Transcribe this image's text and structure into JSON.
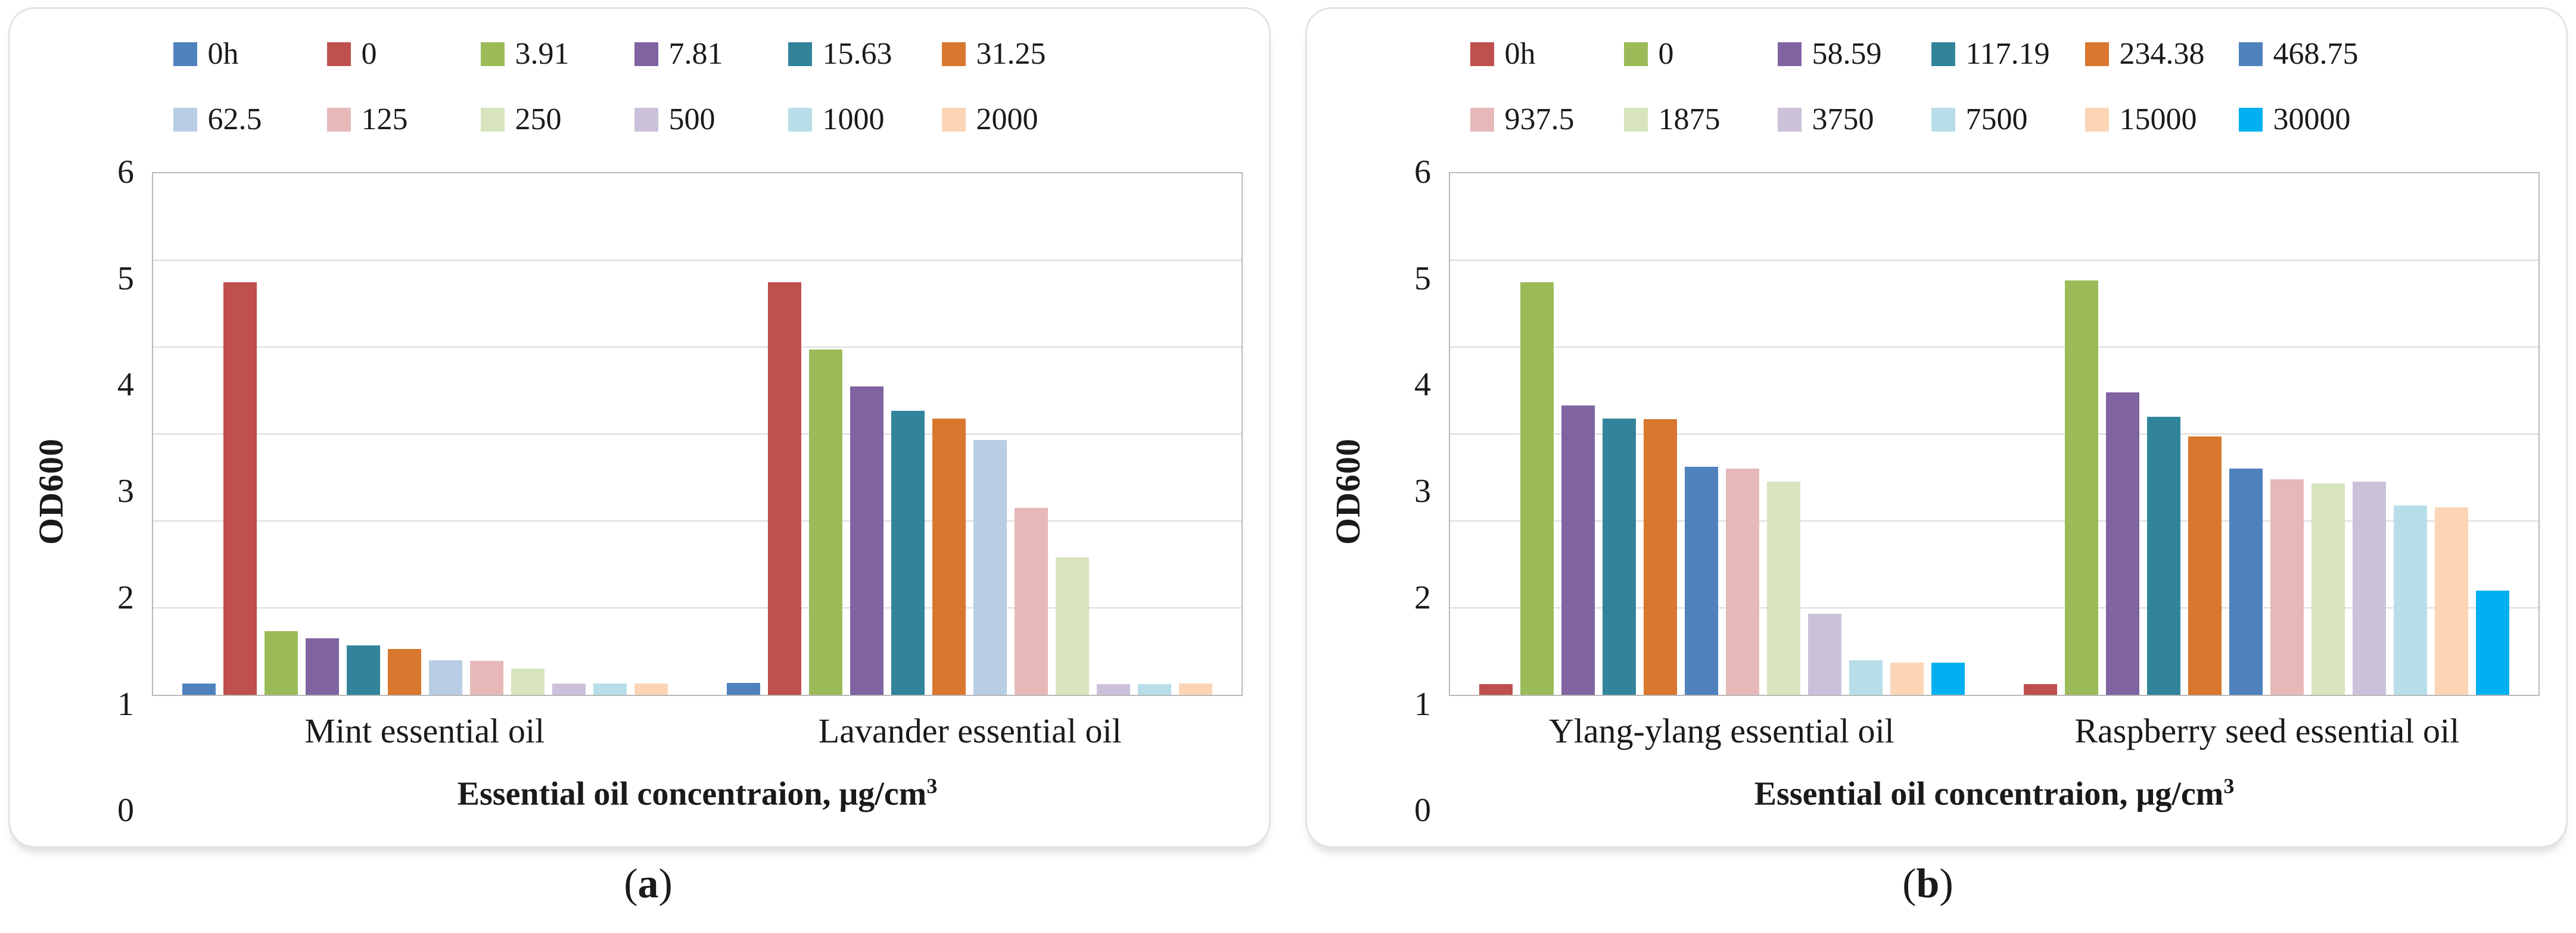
{
  "captions": [
    {
      "open": "(",
      "label": "a",
      "close": ")"
    },
    {
      "open": "(",
      "label": "b",
      "close": ")"
    }
  ],
  "chart_data": [
    {
      "type": "bar",
      "title": "",
      "ylabel": "OD600",
      "xlabel": "Essential oil concentraion, μg/cm",
      "xlabel_superscript": "3",
      "ylim": [
        0,
        6
      ],
      "yticks": [
        0,
        1,
        2,
        3,
        4,
        5,
        6
      ],
      "grid": true,
      "legend_position": "top",
      "categories": [
        "Mint essential oil",
        "Lavander essential oil"
      ],
      "series": [
        {
          "name": "0h",
          "color": "#4f81bd",
          "values": [
            0.13,
            0.14
          ]
        },
        {
          "name": "0",
          "color": "#c0504d",
          "values": [
            4.75,
            4.75
          ]
        },
        {
          "name": "3.91",
          "color": "#9bbb59",
          "values": [
            0.73,
            3.97
          ]
        },
        {
          "name": "7.81",
          "color": "#8064a2",
          "values": [
            0.65,
            3.55
          ]
        },
        {
          "name": "15.63",
          "color": "#31849b",
          "values": [
            0.57,
            3.27
          ]
        },
        {
          "name": "31.25",
          "color": "#d9772e",
          "values": [
            0.53,
            3.18
          ]
        },
        {
          "name": "62.5",
          "color": "#b9cde5",
          "values": [
            0.4,
            2.93
          ]
        },
        {
          "name": "125",
          "color": "#e6b9b8",
          "values": [
            0.39,
            2.15
          ]
        },
        {
          "name": "250",
          "color": "#d7e4bd",
          "values": [
            0.3,
            1.58
          ]
        },
        {
          "name": "500",
          "color": "#ccc1da",
          "values": [
            0.13,
            0.12
          ]
        },
        {
          "name": "1000",
          "color": "#b7dee8",
          "values": [
            0.13,
            0.12
          ]
        },
        {
          "name": "2000",
          "color": "#fbd5b5",
          "values": [
            0.13,
            0.13
          ]
        }
      ]
    },
    {
      "type": "bar",
      "title": "",
      "ylabel": "OD600",
      "xlabel": "Essential oil concentraion, μg/cm",
      "xlabel_superscript": "3",
      "ylim": [
        0,
        6
      ],
      "yticks": [
        0,
        1,
        2,
        3,
        4,
        5,
        6
      ],
      "grid": true,
      "legend_position": "top",
      "categories": [
        "Ylang-ylang essential oil",
        "Raspberry seed essential oil"
      ],
      "series": [
        {
          "name": "0h",
          "color": "#c0504d",
          "values": [
            0.12,
            0.12
          ]
        },
        {
          "name": "0",
          "color": "#9bbb59",
          "values": [
            4.75,
            4.77
          ]
        },
        {
          "name": "58.59",
          "color": "#8064a2",
          "values": [
            3.33,
            3.48
          ]
        },
        {
          "name": "117.19",
          "color": "#31849b",
          "values": [
            3.18,
            3.2
          ]
        },
        {
          "name": "234.38",
          "color": "#d9772e",
          "values": [
            3.17,
            2.97
          ]
        },
        {
          "name": "468.75",
          "color": "#4f81bd",
          "values": [
            2.62,
            2.6
          ]
        },
        {
          "name": "937.5",
          "color": "#e6b9b8",
          "values": [
            2.6,
            2.48
          ]
        },
        {
          "name": "1875",
          "color": "#d7e4bd",
          "values": [
            2.45,
            2.43
          ]
        },
        {
          "name": "3750",
          "color": "#ccc1da",
          "values": [
            0.93,
            2.45
          ]
        },
        {
          "name": "7500",
          "color": "#b7dee8",
          "values": [
            0.4,
            2.18
          ]
        },
        {
          "name": "15000",
          "color": "#fbd5b5",
          "values": [
            0.37,
            2.16
          ]
        },
        {
          "name": "30000",
          "color": "#00b0f0",
          "values": [
            0.37,
            1.2
          ]
        }
      ]
    }
  ]
}
